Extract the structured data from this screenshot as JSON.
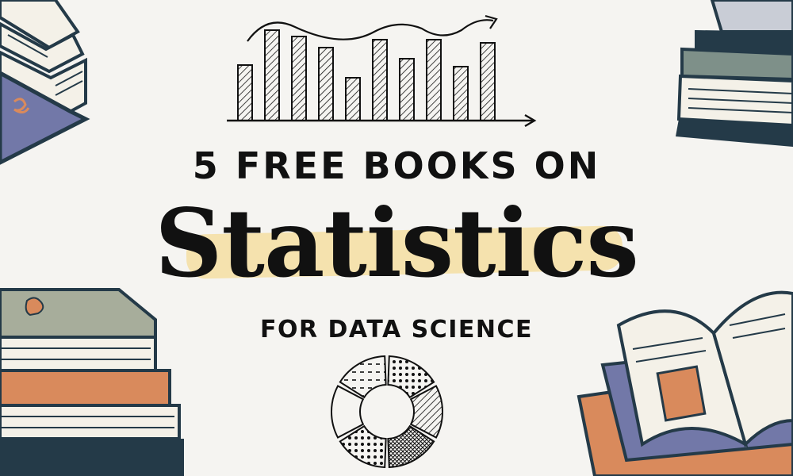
{
  "headline": "5 FREE BOOKS ON",
  "title": "Statistics",
  "subtitle": "FOR DATA SCIENCE",
  "colors": {
    "background": "#f5f4f1",
    "ink": "#111111",
    "highlight": "#f5d682",
    "book_blue": "#7278a8",
    "book_navy": "#243a48",
    "book_orange": "#d98a5c",
    "book_sage": "#a7ad9b",
    "pages": "#f4f1e8"
  },
  "icons": [
    "bar-chart-icon",
    "donut-chart-icon",
    "book-stack-icon",
    "open-book-icon"
  ]
}
